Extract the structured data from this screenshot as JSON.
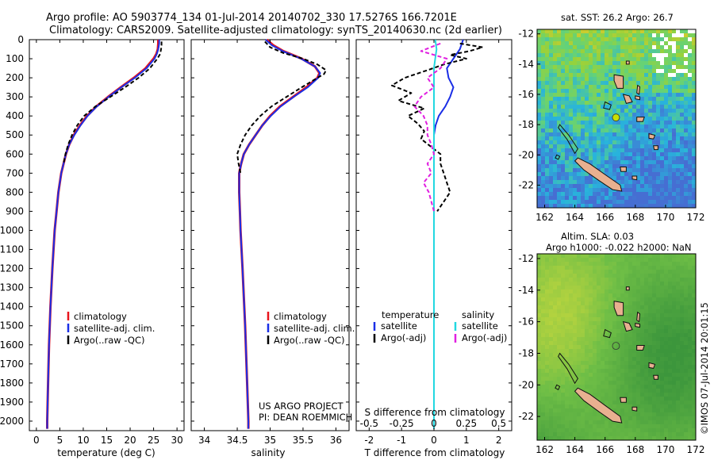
{
  "header": {
    "line1": "Argo profile: AO 5903774_134 01-Jul-2014 20140702_330 17.5276S 166.7201E",
    "line2": "Climatology: CARS2009. Satellite-adjusted climatology: synTS_20140630.nc (2d earlier)"
  },
  "colors": {
    "climatology": "#e8141c",
    "satellite": "#1a2ee6",
    "argo": "#000000",
    "sat_salinity": "#22d8e0",
    "argo_salinity": "#e020e0"
  },
  "depth_axis": {
    "ylim": [
      0,
      2050
    ],
    "ticks": [
      "0",
      "100",
      "200",
      "300",
      "400",
      "500",
      "600",
      "700",
      "800",
      "900",
      "1000",
      "1100",
      "1200",
      "1300",
      "1400",
      "1500",
      "1600",
      "1700",
      "1800",
      "1900",
      "2000"
    ]
  },
  "chart_data": [
    {
      "type": "line",
      "name": "temperature_profile",
      "xlabel": "temperature (deg C)",
      "xlim": [
        -1.5,
        31.5
      ],
      "xticks": [
        "0",
        "5",
        "10",
        "15",
        "20",
        "25",
        "30"
      ],
      "legend": [
        "climatology",
        "satellite-adj. clim.",
        "Argo(..raw -QC)"
      ],
      "series": [
        {
          "name": "climatology",
          "depth": [
            0,
            20,
            50,
            75,
            100,
            150,
            200,
            250,
            300,
            350,
            400,
            450,
            500,
            550,
            600,
            700,
            800,
            900,
            1000,
            1200,
            1400,
            1600,
            1800,
            2000,
            2040
          ],
          "values": [
            26.0,
            26.0,
            25.9,
            25.6,
            25.0,
            23.3,
            20.8,
            18.0,
            15.3,
            12.8,
            10.8,
            9.3,
            8.0,
            7.0,
            6.3,
            5.3,
            4.7,
            4.3,
            3.9,
            3.4,
            3.0,
            2.7,
            2.5,
            2.3,
            2.3
          ]
        },
        {
          "name": "satellite-adj. clim.",
          "depth": [
            0,
            20,
            50,
            75,
            100,
            150,
            200,
            250,
            300,
            350,
            400,
            450,
            500,
            550,
            600,
            700,
            800,
            900,
            1000,
            1200,
            1400,
            1600,
            1800,
            2000,
            2040
          ],
          "values": [
            26.2,
            26.2,
            26.0,
            25.7,
            25.2,
            23.5,
            21.0,
            18.1,
            15.4,
            12.9,
            10.9,
            9.4,
            8.1,
            7.0,
            6.3,
            5.3,
            4.7,
            4.3,
            3.9,
            3.4,
            3.0,
            2.7,
            2.5,
            2.3,
            2.3
          ]
        },
        {
          "name": "Argo(..raw -QC)",
          "depth": [
            10,
            30,
            50,
            75,
            100,
            150,
            200,
            250,
            300,
            350,
            400,
            450,
            500,
            550,
            600,
            650
          ],
          "values": [
            26.7,
            26.7,
            26.6,
            26.4,
            25.8,
            24.2,
            21.8,
            18.9,
            15.8,
            12.6,
            10.2,
            8.7,
            7.6,
            6.8,
            6.2,
            5.8
          ]
        }
      ]
    },
    {
      "type": "line",
      "name": "salinity_profile",
      "xlabel": "salinity",
      "xlim": [
        33.8,
        36.2
      ],
      "xticks": [
        "34",
        "34.5",
        "35",
        "35.5",
        "36"
      ],
      "legend": [
        "climatology",
        "satellite-adj. clim.",
        "Argo(..raw -QC)"
      ],
      "series": [
        {
          "name": "climatology",
          "depth": [
            0,
            30,
            60,
            100,
            140,
            175,
            200,
            250,
            300,
            350,
            400,
            450,
            500,
            550,
            600,
            650,
            700,
            800,
            900,
            1000,
            1200,
            1500,
            1800,
            2000,
            2040
          ],
          "values": [
            34.95,
            35.05,
            35.2,
            35.48,
            35.68,
            35.75,
            35.72,
            35.55,
            35.35,
            35.15,
            35.0,
            34.88,
            34.78,
            34.68,
            34.6,
            34.56,
            34.53,
            34.53,
            34.54,
            34.55,
            34.58,
            34.62,
            34.65,
            34.67,
            34.67
          ]
        },
        {
          "name": "satellite-adj. clim.",
          "depth": [
            0,
            30,
            60,
            100,
            140,
            175,
            200,
            250,
            300,
            350,
            400,
            450,
            500,
            550,
            600,
            650,
            700,
            800,
            900,
            1000,
            1200,
            1500,
            1800,
            2000,
            2040
          ],
          "values": [
            34.93,
            35.03,
            35.19,
            35.47,
            35.68,
            35.76,
            35.73,
            35.57,
            35.36,
            35.16,
            35.01,
            34.88,
            34.78,
            34.68,
            34.6,
            34.56,
            34.53,
            34.53,
            34.54,
            34.55,
            34.58,
            34.62,
            34.65,
            34.67,
            34.67
          ]
        },
        {
          "name": "Argo(..raw -QC)",
          "depth": [
            10,
            40,
            70,
            100,
            130,
            160,
            180,
            200,
            250,
            300,
            350,
            400,
            450,
            500,
            550,
            600,
            650,
            700
          ],
          "values": [
            34.92,
            35.0,
            35.2,
            35.5,
            35.72,
            35.85,
            35.82,
            35.72,
            35.48,
            35.25,
            35.02,
            34.85,
            34.72,
            34.62,
            34.55,
            34.5,
            34.52,
            34.55
          ]
        }
      ]
    },
    {
      "type": "line",
      "name": "difference_profile",
      "xlabel": "T difference from climatology",
      "xlim": [
        -2.4,
        2.4
      ],
      "xticks": [
        "-2",
        "-1",
        "0",
        "1",
        "2"
      ],
      "top_label": "S difference from climatology",
      "top_ticks": [
        "-0.5",
        "-0.25",
        "0",
        "0.25",
        "0.5"
      ],
      "legend_titles": [
        "temperature",
        "salinity"
      ],
      "legend": [
        "satellite",
        "Argo(-adj)",
        "satellite",
        "Argo(-adj)"
      ],
      "series": [
        {
          "name": "temperature satellite",
          "depth": [
            0,
            50,
            100,
            150,
            200,
            250,
            300,
            350,
            400,
            450,
            500,
            600,
            700,
            800,
            1000,
            1500,
            2000,
            2040
          ],
          "values": [
            0.9,
            0.8,
            0.6,
            0.4,
            0.45,
            0.6,
            0.5,
            0.35,
            0.15,
            0.05,
            0.0,
            0.0,
            0.0,
            0.0,
            0.0,
            0.0,
            0.0,
            0.0
          ]
        },
        {
          "name": "temperature Argo(-adj)",
          "depth": [
            20,
            40,
            60,
            80,
            100,
            130,
            160,
            200,
            240,
            280,
            320,
            360,
            400,
            440,
            480,
            520,
            560,
            600,
            650,
            700,
            750,
            800,
            850,
            900
          ],
          "values": [
            0.8,
            1.5,
            1.1,
            0.5,
            1.0,
            0.3,
            -0.2,
            -0.9,
            -1.3,
            -0.7,
            -1.1,
            -0.3,
            -0.8,
            -0.5,
            -0.3,
            -0.4,
            -0.1,
            0.2,
            0.2,
            0.3,
            0.4,
            0.5,
            0.3,
            0.1
          ]
        },
        {
          "name": "salinity satellite",
          "depth": [
            0,
            50,
            100,
            150,
            200,
            300,
            400,
            500,
            600,
            800,
            1000,
            1500,
            2000,
            2040
          ],
          "values": [
            0.01,
            0.02,
            0.01,
            0.0,
            0.0,
            0.0,
            0.0,
            0.0,
            0.0,
            0.0,
            0.0,
            0.0,
            0.0,
            0.0
          ]
        },
        {
          "name": "salinity Argo(-adj)",
          "depth": [
            20,
            60,
            100,
            150,
            200,
            250,
            300,
            350,
            400,
            450,
            500,
            550,
            600,
            650,
            700,
            750,
            800,
            900
          ],
          "values": [
            0.05,
            -0.1,
            0.1,
            0.05,
            -0.05,
            0.0,
            -0.1,
            -0.15,
            -0.08,
            -0.05,
            -0.05,
            -0.02,
            0.0,
            -0.05,
            -0.02,
            -0.08,
            -0.04,
            0.0
          ]
        }
      ]
    },
    {
      "type": "heatmap",
      "name": "sst_map",
      "title": "sat. SST: 26.2 Argo: 26.7",
      "xlim": [
        161.5,
        172
      ],
      "ylim": [
        -23.5,
        -11.7
      ],
      "xticks": [
        "162",
        "164",
        "166",
        "168",
        "170",
        "172"
      ],
      "yticks": [
        "-12",
        "-14",
        "-16",
        "-18",
        "-20",
        "-22"
      ],
      "marker": {
        "lon": 166.72,
        "lat": -17.53
      }
    },
    {
      "type": "heatmap",
      "name": "sla_map",
      "title_line1": "Altim. SLA: 0.03",
      "title_line2": "Argo h1000: -0.022 h2000: NaN",
      "xlim": [
        161.5,
        172
      ],
      "ylim": [
        -23.5,
        -11.7
      ],
      "xticks": [
        "162",
        "164",
        "166",
        "168",
        "170",
        "172"
      ],
      "yticks": [
        "-12",
        "-14",
        "-16",
        "-18",
        "-20",
        "-22"
      ],
      "marker": {
        "lon": 166.72,
        "lat": -17.53
      }
    }
  ],
  "credits": {
    "project": "US ARGO PROJECT",
    "pi": "PI: DEAN ROEMMICH",
    "imos": "©IMOS 07-Jul-2014 20:01:15"
  }
}
